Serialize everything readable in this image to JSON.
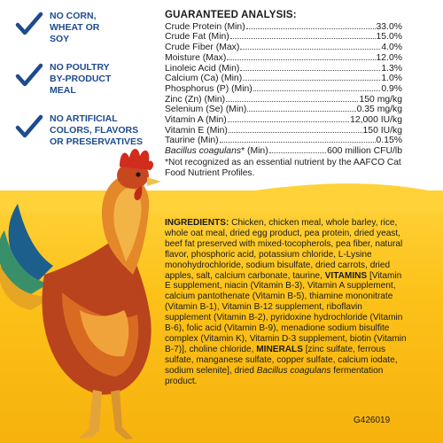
{
  "claims": [
    {
      "text": "NO CORN, WHEAT OR SOY",
      "icon": "checkmark-icon"
    },
    {
      "text": "NO POULTRY BY-PRODUCT MEAL",
      "icon": "checkmark-icon"
    },
    {
      "text": "NO ARTIFICIAL COLORS, FLAVORS OR PRESERVATIVES",
      "icon": "checkmark-icon"
    }
  ],
  "colors": {
    "claim_blue": "#1e4b8f",
    "panel_yellow": "#fcc21a",
    "text_dark": "#1a1a1a"
  },
  "analysis": {
    "title": "GUARANTEED ANALYSIS:",
    "rows": [
      {
        "label": "Crude Protein (Min)",
        "value": "33.0%"
      },
      {
        "label": "Crude Fat (Min)",
        "value": "15.0%"
      },
      {
        "label": "Crude Fiber (Max)",
        "value": "4.0%"
      },
      {
        "label": "Moisture (Max)",
        "value": "12.0%"
      },
      {
        "label": "Linoleic Acid (Min)",
        "value": "1.3%"
      },
      {
        "label": "Calcium (Ca) (Min)",
        "value": "1.0%"
      },
      {
        "label": "Phosphorus (P) (Min)",
        "value": "0.9%"
      },
      {
        "label": "Zinc (Zn) (Min)",
        "value": "150 mg/kg"
      },
      {
        "label": "Selenium (Se) (Min)",
        "value": "0.35 mg/kg"
      },
      {
        "label": "Vitamin A (Min)",
        "value": "12,000 IU/kg"
      },
      {
        "label": "Vitamin E (Min)",
        "value": "150 IU/kg"
      },
      {
        "label": "Taurine (Min)",
        "value": "0.15%"
      }
    ],
    "bacillus": {
      "italic": "Bacillus coagulans",
      "label": "* (Min)",
      "value": "600 million CFU/lb"
    },
    "footnote": "*Not recognized as an essential nutrient by the AAFCO Cat Food Nutrient Profiles."
  },
  "ingredients": {
    "heading": "INGREDIENTS:",
    "part1": " Chicken, chicken meal, whole barley, rice, whole oat meal, dried egg product, pea protein, dried yeast, beef fat preserved with mixed-tocopherols, pea fiber, natural flavor, phosphoric acid, potassium chloride, L-Lysine monohydrochloride, sodium bisulfate, dried carrots, dried apples, salt, calcium carbonate, taurine, ",
    "vitamins": "VITAMINS",
    "part2": " [Vitamin E supplement, niacin (Vitamin B-3), Vitamin A supplement, calcium pantothenate (Vitamin B-5), thiamine mononitrate (Vitamin B-1), Vitamin B-12 supplement, riboflavin supplement (Vitamin B-2), pyridoxine hydrochloride (Vitamin B-6), folic acid (Vitamin B-9), menadione sodium bisulfite complex (Vitamin K), Vitamin D-3 supplement, biotin (Vitamin B-7)], choline chloride, ",
    "minerals": "MINERALS",
    "part3": " [zinc sulfate, ferrous sulfate, manganese sulfate, copper sulfate, calcium iodate, sodium selenite], dried ",
    "bacillus_italic": "Bacillus coagulans",
    "part4": " fermentation product."
  },
  "product_code": "G426019"
}
